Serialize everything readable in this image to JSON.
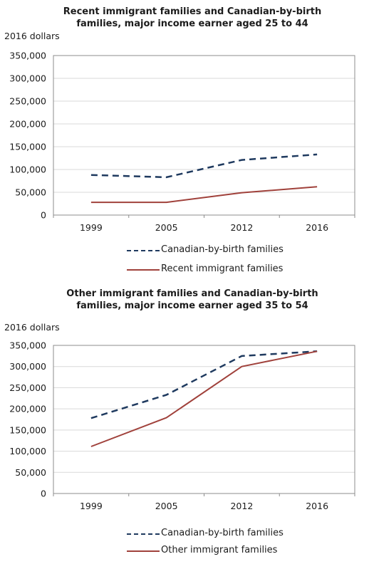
{
  "chart_data": [
    {
      "type": "line",
      "title": "Recent immigrant families and Canadian-by-birth families, major income earner aged 25 to 44",
      "ylabel": "2016 dollars",
      "categories": [
        "1999",
        "2005",
        "2012",
        "2016"
      ],
      "yticks": [
        "0",
        "50,000",
        "100,000",
        "150,000",
        "200,000",
        "250,000",
        "300,000",
        "350,000"
      ],
      "ylim": [
        0,
        350000
      ],
      "grid": true,
      "legend_position": "bottom",
      "series": [
        {
          "name": "Canadian-by-birth families",
          "values": [
            88000,
            83000,
            121000,
            133000
          ],
          "color": "#1f3a5f",
          "style": "dashed"
        },
        {
          "name": "Recent immigrant families",
          "values": [
            28000,
            28000,
            49000,
            62000
          ],
          "color": "#a0413b",
          "style": "solid"
        }
      ]
    },
    {
      "type": "line",
      "title": "Other immigrant families and Canadian-by-birth families, major income earner aged 35 to 54",
      "ylabel": "2016 dollars",
      "categories": [
        "1999",
        "2005",
        "2012",
        "2016"
      ],
      "yticks": [
        "0",
        "50,000",
        "100,000",
        "150,000",
        "200,000",
        "250,000",
        "300,000",
        "350,000"
      ],
      "ylim": [
        0,
        350000
      ],
      "grid": true,
      "legend_position": "bottom",
      "series": [
        {
          "name": "Canadian-by-birth families",
          "values": [
            178000,
            233000,
            325000,
            336000
          ],
          "color": "#1f3a5f",
          "style": "dashed"
        },
        {
          "name": "Other immigrant families",
          "values": [
            111000,
            179000,
            300000,
            336000
          ],
          "color": "#a0413b",
          "style": "solid"
        }
      ]
    }
  ]
}
